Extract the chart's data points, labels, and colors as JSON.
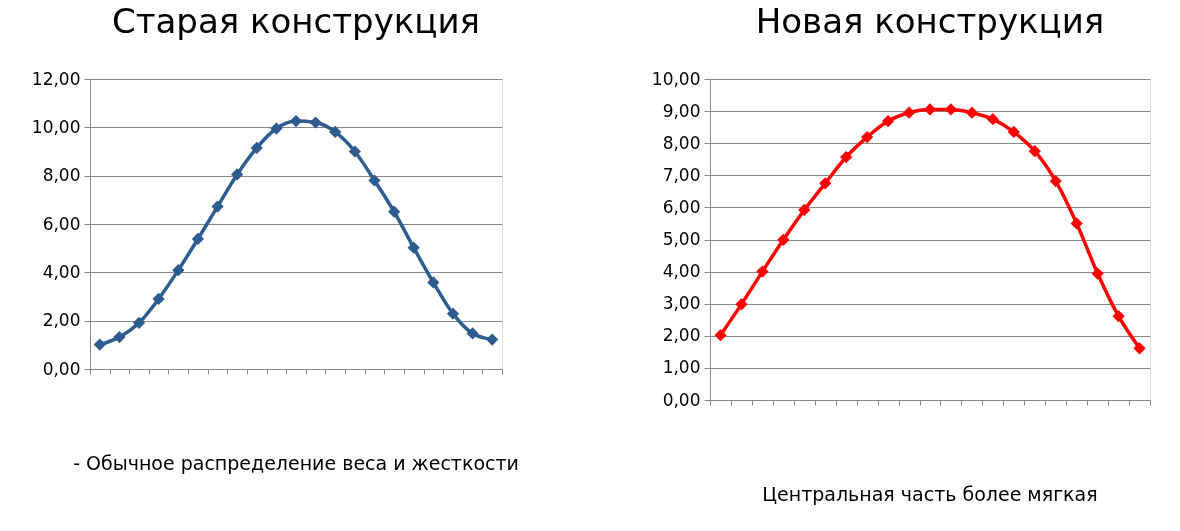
{
  "chart_data": [
    {
      "type": "line",
      "title": "Старая конструкция",
      "categories": [
        null,
        null,
        null,
        null,
        null,
        null,
        null,
        null,
        null,
        null,
        null,
        null,
        null,
        null,
        null,
        null,
        null,
        null,
        null,
        null,
        null
      ],
      "series": [
        {
          "color": "#2f5c8f",
          "values": [
            1.01,
            1.32,
            1.91,
            2.9,
            4.09,
            5.38,
            6.72,
            8.05,
            9.15,
            9.95,
            10.26,
            10.2,
            9.81,
            9.0,
            7.8,
            6.51,
            5.02,
            3.58,
            2.29,
            1.47,
            1.22
          ]
        }
      ],
      "ylim": [
        0,
        12
      ],
      "yticks": [
        {
          "value": 0,
          "label": "0,00"
        },
        {
          "value": 2,
          "label": "2,00"
        },
        {
          "value": 4,
          "label": "4,00"
        },
        {
          "value": 6,
          "label": "6,00"
        },
        {
          "value": 8,
          "label": "8,00"
        },
        {
          "value": 10,
          "label": "10,00"
        },
        {
          "value": 12,
          "label": "12,00"
        }
      ],
      "grid": "y",
      "marker": "diamond",
      "line_style": "solid",
      "annotations": [
        "- Обычное распределение веса и жесткости"
      ]
    },
    {
      "type": "line",
      "title": "Новая конструкция",
      "categories": [
        null,
        null,
        null,
        null,
        null,
        null,
        null,
        null,
        null,
        null,
        null,
        null,
        null,
        null,
        null,
        null,
        null,
        null,
        null,
        null,
        null
      ],
      "series": [
        {
          "color": "#ff0000",
          "values": [
            2.02,
            2.98,
            4.0,
            4.99,
            5.92,
            6.75,
            7.57,
            8.19,
            8.69,
            8.95,
            9.05,
            9.05,
            8.95,
            8.75,
            8.35,
            7.75,
            6.82,
            5.5,
            3.94,
            2.61,
            1.61
          ]
        }
      ],
      "ylim": [
        0,
        10
      ],
      "yticks": [
        {
          "value": 0,
          "label": "0,00"
        },
        {
          "value": 1,
          "label": "1,00"
        },
        {
          "value": 2,
          "label": "2,00"
        },
        {
          "value": 3,
          "label": "3,00"
        },
        {
          "value": 4,
          "label": "4,00"
        },
        {
          "value": 5,
          "label": "5,00"
        },
        {
          "value": 6,
          "label": "6,00"
        },
        {
          "value": 7,
          "label": "7,00"
        },
        {
          "value": 8,
          "label": "8,00"
        },
        {
          "value": 9,
          "label": "9,00"
        },
        {
          "value": 10,
          "label": "10,00"
        }
      ],
      "grid": "y",
      "marker": "diamond",
      "line_style": "solid",
      "annotations": [
        "Центральная часть более мягкая"
      ]
    }
  ]
}
